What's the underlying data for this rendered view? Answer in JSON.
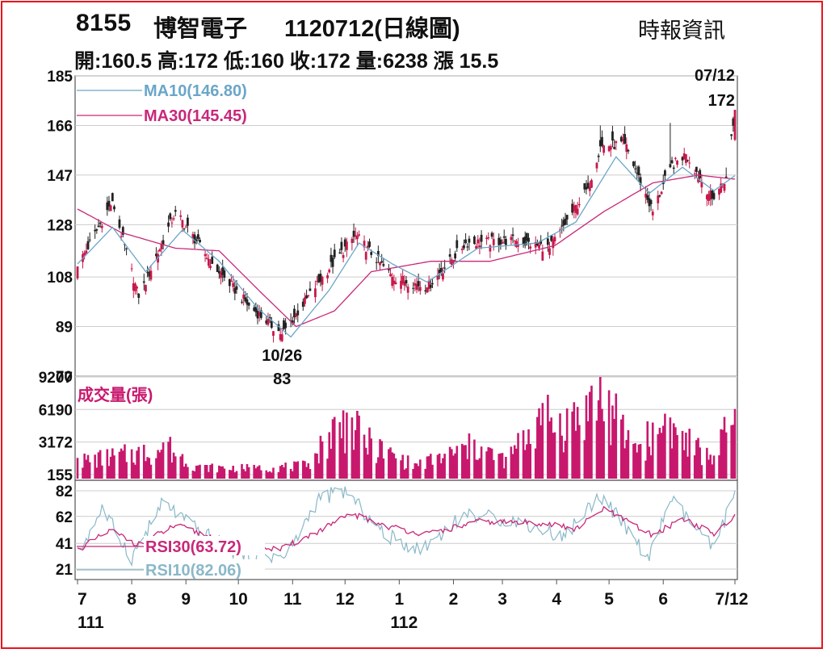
{
  "header": {
    "stock_code": "8155",
    "stock_name": "博智電子",
    "chart_title": "1120712(日線圖)",
    "source": "時報資訊",
    "summary": "開:160.5 高:172 低:160 收:172 量:6238 漲 15.5"
  },
  "colors": {
    "frame": "#e8141c",
    "up_candle": "#c8184a",
    "down_candle": "#222222",
    "ma10": "#6aa6c8",
    "ma30": "#c8287a",
    "volume": "#c8186e",
    "rsi30": "#c8287a",
    "rsi10": "#8ab8c8",
    "grid": "#cccccc"
  },
  "chart_data": [
    {
      "type": "candlestick",
      "panel": "price",
      "y_ticks": [
        "185",
        "166",
        "147",
        "128",
        "108",
        "89",
        "70"
      ],
      "ylim": [
        70,
        185
      ],
      "grid": true,
      "legend": [
        {
          "label": "MA10(146.80)",
          "color": "#6aa6c8"
        },
        {
          "label": "MA30(145.45)",
          "color": "#c8287a"
        }
      ],
      "annotations": [
        {
          "date": "07/12",
          "value": "172",
          "position": "top-right"
        },
        {
          "date": "10/26",
          "value": "83",
          "position": "bottom-center"
        }
      ],
      "ohlc_anchors": [
        {
          "date": "111/07/01",
          "close": 112
        },
        {
          "date": "111/07/21",
          "close": 137
        },
        {
          "date": "111/08/05",
          "close": 100
        },
        {
          "date": "111/08/26",
          "close": 133
        },
        {
          "date": "111/09/16",
          "close": 113
        },
        {
          "date": "111/10/07",
          "close": 97
        },
        {
          "date": "111/10/26",
          "low": 83,
          "close": 86
        },
        {
          "date": "111/11/18",
          "close": 108
        },
        {
          "date": "111/12/07",
          "high": 127,
          "close": 124
        },
        {
          "date": "111/12/28",
          "close": 108
        },
        {
          "date": "112/01/17",
          "close": 104
        },
        {
          "date": "112/02/08",
          "close": 121
        },
        {
          "date": "112/03/08",
          "close": 122
        },
        {
          "date": "112/03/28",
          "close": 119
        },
        {
          "date": "112/04/19",
          "close": 142
        },
        {
          "date": "112/04/26",
          "high": 166,
          "close": 158
        },
        {
          "date": "112/05/10",
          "close": 159
        },
        {
          "date": "112/05/26",
          "close": 133
        },
        {
          "date": "112/06/05",
          "high": 167,
          "close": 150
        },
        {
          "date": "112/06/14",
          "close": 155
        },
        {
          "date": "112/06/29",
          "close": 138
        },
        {
          "date": "112/07/07",
          "close": 146
        },
        {
          "date": "112/07/12",
          "open": 160.5,
          "high": 172,
          "low": 160,
          "close": 172
        }
      ],
      "ma10_anchors": [
        {
          "date": "111/07/01",
          "value": 113
        },
        {
          "date": "111/07/21",
          "value": 127
        },
        {
          "date": "111/08/09",
          "value": 110
        },
        {
          "date": "111/08/30",
          "value": 126
        },
        {
          "date": "111/09/20",
          "value": 114
        },
        {
          "date": "111/10/12",
          "value": 96
        },
        {
          "date": "111/10/31",
          "value": 85
        },
        {
          "date": "111/11/22",
          "value": 103
        },
        {
          "date": "111/12/09",
          "value": 121
        },
        {
          "date": "111/12/28",
          "value": 113
        },
        {
          "date": "112/01/17",
          "value": 106
        },
        {
          "date": "112/02/15",
          "value": 119
        },
        {
          "date": "112/03/21",
          "value": 121
        },
        {
          "date": "112/04/12",
          "value": 129
        },
        {
          "date": "112/05/05",
          "value": 154
        },
        {
          "date": "112/05/24",
          "value": 140
        },
        {
          "date": "112/06/12",
          "value": 150
        },
        {
          "date": "112/06/30",
          "value": 141
        },
        {
          "date": "112/07/12",
          "value": 146.8
        }
      ],
      "ma30_anchors": [
        {
          "date": "111/07/01",
          "value": 134
        },
        {
          "date": "111/07/26",
          "value": 125
        },
        {
          "date": "111/08/26",
          "value": 119
        },
        {
          "date": "111/09/20",
          "value": 118
        },
        {
          "date": "111/10/14",
          "value": 102
        },
        {
          "date": "111/11/03",
          "value": 89
        },
        {
          "date": "111/11/25",
          "value": 95
        },
        {
          "date": "111/12/16",
          "value": 110
        },
        {
          "date": "112/01/19",
          "value": 114
        },
        {
          "date": "112/02/22",
          "value": 114
        },
        {
          "date": "112/03/31",
          "value": 120
        },
        {
          "date": "112/04/28",
          "value": 133
        },
        {
          "date": "112/05/26",
          "value": 144
        },
        {
          "date": "112/06/21",
          "value": 147
        },
        {
          "date": "112/07/12",
          "value": 145.45
        }
      ]
    },
    {
      "type": "bar",
      "panel": "volume",
      "title": "成交量(張)",
      "y_ticks": [
        "9207",
        "6190",
        "3172",
        "155"
      ],
      "ylim": [
        0,
        9207
      ],
      "grid": true,
      "volume_anchors": [
        {
          "date": "111/07/01",
          "value": 1700
        },
        {
          "date": "111/08/01",
          "value": 2500
        },
        {
          "date": "111/08/22",
          "value": 3200
        },
        {
          "date": "111/09/08",
          "value": 1000
        },
        {
          "date": "111/10/12",
          "value": 900
        },
        {
          "date": "111/11/10",
          "value": 1200
        },
        {
          "date": "111/11/25",
          "value": 5500
        },
        {
          "date": "111/12/02",
          "value": 5900
        },
        {
          "date": "111/12/16",
          "value": 3500
        },
        {
          "date": "112/01/10",
          "value": 1200
        },
        {
          "date": "112/02/13",
          "value": 3400
        },
        {
          "date": "112/03/03",
          "value": 1800
        },
        {
          "date": "112/03/22",
          "value": 6300
        },
        {
          "date": "112/04/10",
          "value": 6000
        },
        {
          "date": "112/04/26",
          "value": 9207
        },
        {
          "date": "112/05/15",
          "value": 3000
        },
        {
          "date": "112/06/02",
          "value": 5800
        },
        {
          "date": "112/06/12",
          "value": 4200
        },
        {
          "date": "112/06/28",
          "value": 2000
        },
        {
          "date": "112/07/12",
          "value": 6238
        }
      ]
    },
    {
      "type": "line",
      "panel": "rsi",
      "y_ticks": [
        "82",
        "62",
        "41",
        "21"
      ],
      "ylim": [
        14,
        90
      ],
      "grid": true,
      "legend": [
        {
          "label": "RSI30(63.72)",
          "color": "#c8287a"
        },
        {
          "label": "RSI10(82.06)",
          "color": "#8ab8c8"
        }
      ],
      "rsi10_anchors": [
        {
          "date": "111/07/01",
          "value": 32
        },
        {
          "date": "111/07/15",
          "value": 68
        },
        {
          "date": "111/08/01",
          "value": 30
        },
        {
          "date": "111/08/19",
          "value": 73
        },
        {
          "date": "111/09/07",
          "value": 52
        },
        {
          "date": "111/09/30",
          "value": 34
        },
        {
          "date": "111/10/28",
          "value": 30
        },
        {
          "date": "111/11/16",
          "value": 76
        },
        {
          "date": "111/12/01",
          "value": 82
        },
        {
          "date": "111/12/23",
          "value": 48
        },
        {
          "date": "112/01/13",
          "value": 36
        },
        {
          "date": "112/02/08",
          "value": 64
        },
        {
          "date": "112/03/10",
          "value": 58
        },
        {
          "date": "112/04/05",
          "value": 46
        },
        {
          "date": "112/04/26",
          "value": 79
        },
        {
          "date": "112/05/24",
          "value": 29
        },
        {
          "date": "112/06/05",
          "value": 76
        },
        {
          "date": "112/06/30",
          "value": 36
        },
        {
          "date": "112/07/12",
          "value": 82.06
        }
      ],
      "rsi30_anchors": [
        {
          "date": "111/07/01",
          "value": 36
        },
        {
          "date": "111/07/20",
          "value": 51
        },
        {
          "date": "111/08/05",
          "value": 40
        },
        {
          "date": "111/08/26",
          "value": 55
        },
        {
          "date": "111/09/20",
          "value": 44
        },
        {
          "date": "111/10/25",
          "value": 36
        },
        {
          "date": "111/11/18",
          "value": 52
        },
        {
          "date": "111/12/05",
          "value": 64
        },
        {
          "date": "111/12/26",
          "value": 54
        },
        {
          "date": "112/01/17",
          "value": 48
        },
        {
          "date": "112/02/15",
          "value": 58
        },
        {
          "date": "112/03/24",
          "value": 57
        },
        {
          "date": "112/04/12",
          "value": 52
        },
        {
          "date": "112/04/28",
          "value": 68
        },
        {
          "date": "112/05/26",
          "value": 47
        },
        {
          "date": "112/06/12",
          "value": 61
        },
        {
          "date": "112/06/30",
          "value": 48
        },
        {
          "date": "112/07/12",
          "value": 63.72
        }
      ]
    }
  ],
  "x_axis": {
    "month_labels": [
      "7",
      "8",
      "9",
      "10",
      "11",
      "12",
      "1",
      "2",
      "3",
      "4",
      "5",
      "6",
      "7/12"
    ],
    "month_dates": [
      "111/07/01",
      "111/08/01",
      "111/09/01",
      "111/10/01",
      "111/11/01",
      "111/12/01",
      "112/01/01",
      "112/02/01",
      "112/03/01",
      "112/04/01",
      "112/05/01",
      "112/06/01",
      "112/07/12"
    ],
    "year_labels": [
      {
        "label": "111",
        "date": "111/07/01"
      },
      {
        "label": "112",
        "date": "112/01/01"
      }
    ]
  }
}
